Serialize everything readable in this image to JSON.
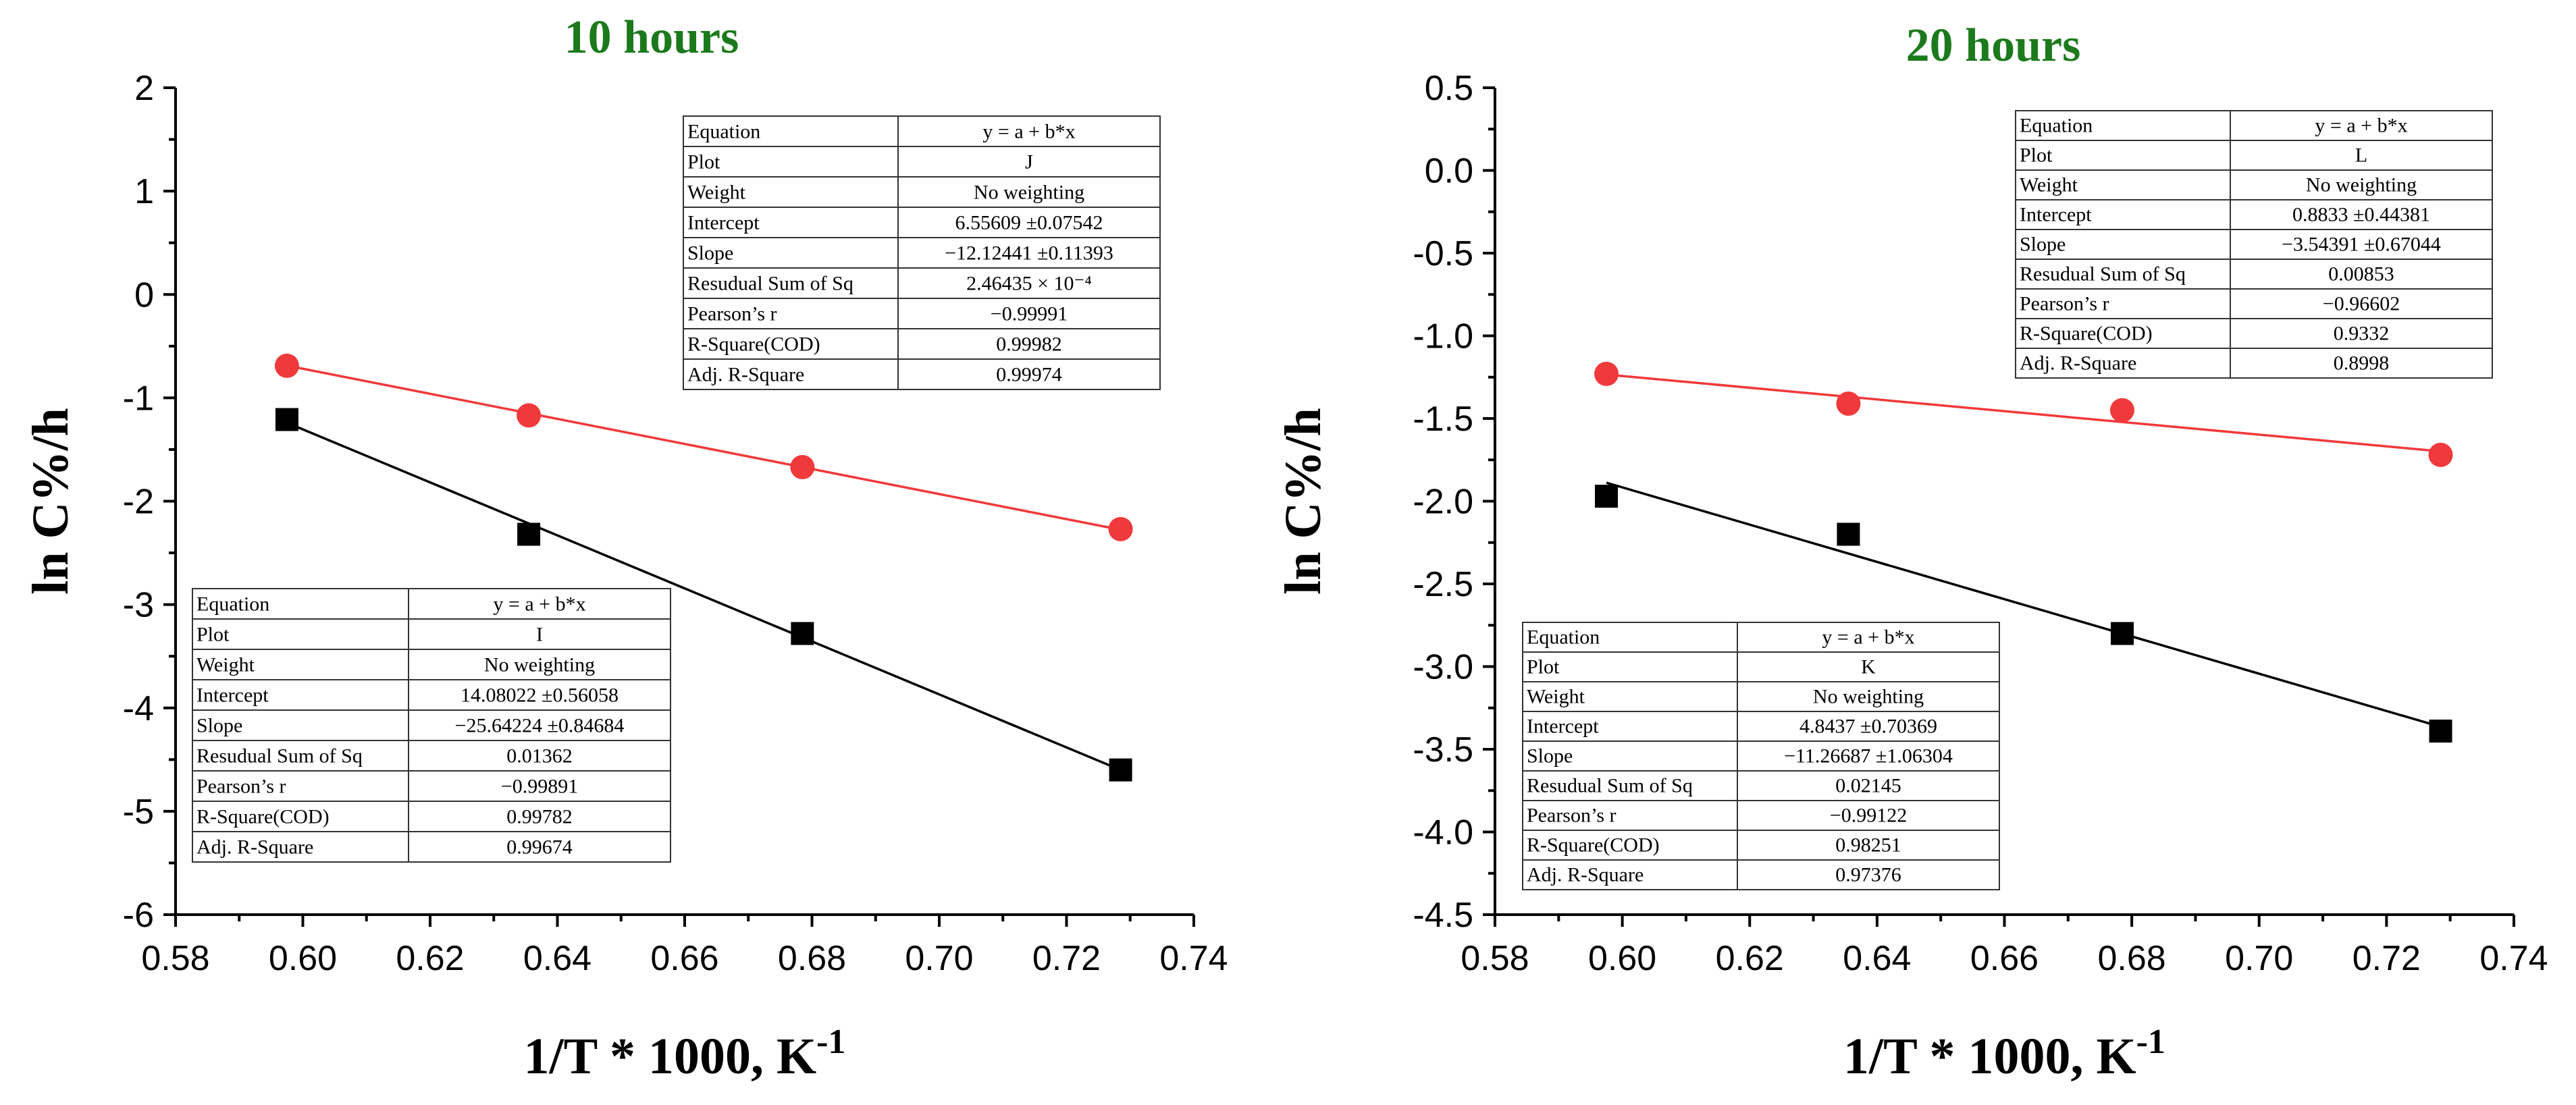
{
  "chart_data": [
    {
      "type": "scatter",
      "title": "10 hours",
      "xlabel": "1/T * 1000, K",
      "xlabel_sup": "-1",
      "ylabel": "ln C%/h",
      "xlim": [
        0.58,
        0.74
      ],
      "ylim": [
        -6,
        2
      ],
      "xticks": [
        "0.58",
        "0.60",
        "0.62",
        "0.64",
        "0.66",
        "0.68",
        "0.70",
        "0.72",
        "0.74"
      ],
      "yticks": [
        "2",
        "1",
        "0",
        "-1",
        "-2",
        "-3",
        "-4",
        "-5",
        "-6"
      ],
      "colors": {
        "red": "#f0393b",
        "black": "#000000"
      },
      "series": [
        {
          "name": "J",
          "marker": "circle",
          "color": "#f0393b",
          "x": [
            0.5975,
            0.6355,
            0.6785,
            0.7285
          ],
          "y": [
            -0.69,
            -1.17,
            -1.67,
            -2.27
          ],
          "fit": {
            "intercept": 6.55609,
            "slope": -12.12441
          }
        },
        {
          "name": "I",
          "marker": "square",
          "color": "#000000",
          "x": [
            0.5975,
            0.6355,
            0.6785,
            0.7285
          ],
          "y": [
            -1.21,
            -2.32,
            -3.28,
            -4.6
          ],
          "fit": {
            "intercept": 14.08022,
            "slope": -25.64224
          }
        }
      ],
      "tables": [
        {
          "position": "top-right",
          "rows": [
            [
              "Equation",
              "y = a + b*x"
            ],
            [
              "Plot",
              "J"
            ],
            [
              "Weight",
              "No weighting"
            ],
            [
              "Intercept",
              "6.55609 ±0.07542"
            ],
            [
              "Slope",
              "−12.12441 ±0.11393"
            ],
            [
              "Resudual Sum of Sq",
              "2.46435 × 10⁻⁴"
            ],
            [
              "Pearson’s r",
              "−0.99991"
            ],
            [
              "R-Square(COD)",
              "0.99982"
            ],
            [
              "Adj. R-Square",
              "0.99974"
            ]
          ]
        },
        {
          "position": "bottom-left",
          "rows": [
            [
              "Equation",
              "y = a + b*x"
            ],
            [
              "Plot",
              "I"
            ],
            [
              "Weight",
              "No weighting"
            ],
            [
              "Intercept",
              "14.08022 ±0.56058"
            ],
            [
              "Slope",
              "−25.64224 ±0.84684"
            ],
            [
              "Resudual Sum of Sq",
              "0.01362"
            ],
            [
              "Pearson’s r",
              "−0.99891"
            ],
            [
              "R-Square(COD)",
              "0.99782"
            ],
            [
              "Adj. R-Square",
              "0.99674"
            ]
          ]
        }
      ]
    },
    {
      "type": "scatter",
      "title": "20 hours",
      "xlabel": "1/T * 1000, K",
      "xlabel_sup": "-1",
      "ylabel": "ln C%/h",
      "xlim": [
        0.58,
        0.74
      ],
      "ylim": [
        -4.5,
        0.5
      ],
      "xticks": [
        "0.58",
        "0.60",
        "0.62",
        "0.64",
        "0.66",
        "0.68",
        "0.70",
        "0.72",
        "0.74"
      ],
      "yticks": [
        "0.5",
        "0.0",
        "-0.5",
        "-1.0",
        "-1.5",
        "-2.0",
        "-2.5",
        "-3.0",
        "-3.5",
        "-4.0",
        "-4.5"
      ],
      "colors": {
        "red": "#f0393b",
        "black": "#000000"
      },
      "series": [
        {
          "name": "L",
          "marker": "circle",
          "color": "#f0393b",
          "x": [
            0.5975,
            0.6355,
            0.6785,
            0.7285
          ],
          "y": [
            -1.23,
            -1.41,
            -1.45,
            -1.72
          ],
          "fit": {
            "intercept": 0.8833,
            "slope": -3.54391
          }
        },
        {
          "name": "K",
          "marker": "square",
          "color": "#000000",
          "x": [
            0.5975,
            0.6355,
            0.6785,
            0.7285
          ],
          "y": [
            -1.97,
            -2.2,
            -2.8,
            -3.39
          ],
          "fit": {
            "intercept": 4.8437,
            "slope": -11.26687
          }
        }
      ],
      "tables": [
        {
          "position": "top-right",
          "rows": [
            [
              "Equation",
              "y = a + b*x"
            ],
            [
              "Plot",
              "L"
            ],
            [
              "Weight",
              "No weighting"
            ],
            [
              "Intercept",
              "0.8833 ±0.44381"
            ],
            [
              "Slope",
              "−3.54391 ±0.67044"
            ],
            [
              "Resudual Sum of Sq",
              "0.00853"
            ],
            [
              "Pearson’s r",
              "−0.96602"
            ],
            [
              "R-Square(COD)",
              "0.9332"
            ],
            [
              "Adj. R-Square",
              "0.8998"
            ]
          ]
        },
        {
          "position": "bottom-left",
          "rows": [
            [
              "Equation",
              "y = a + b*x"
            ],
            [
              "Plot",
              "K"
            ],
            [
              "Weight",
              "No weighting"
            ],
            [
              "Intercept",
              "4.8437 ±0.70369"
            ],
            [
              "Slope",
              "−11.26687 ±1.06304"
            ],
            [
              "Resudual Sum of Sq",
              "0.02145"
            ],
            [
              "Pearson’s r",
              "−0.99122"
            ],
            [
              "R-Square(COD)",
              "0.98251"
            ],
            [
              "Adj. R-Square",
              "0.97376"
            ]
          ]
        }
      ]
    }
  ]
}
